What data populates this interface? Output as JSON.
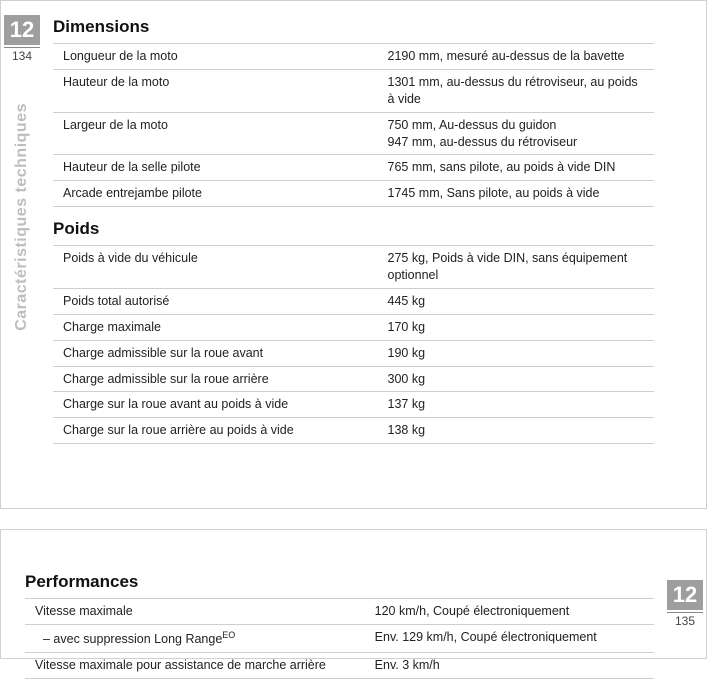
{
  "chapter": "12",
  "page_top": "134",
  "page_bottom": "135",
  "vertical_label": "Caractéristiques techniques",
  "sections": {
    "dimensions": {
      "title": "Dimensions",
      "rows": [
        {
          "label": "Longueur de la moto",
          "value": "2190 mm, mesuré au-dessus de la bavette"
        },
        {
          "label": "Hauteur de la moto",
          "value": "1301 mm, au-dessus du rétroviseur, au poids à vide"
        },
        {
          "label": "Largeur de la moto",
          "value": "750 mm, Au-dessus du guidon\n947 mm, au-dessus du rétroviseur"
        },
        {
          "label": "Hauteur de la selle pilote",
          "value": "765 mm, sans pilote, au poids à vide DIN"
        },
        {
          "label": "Arcade entrejambe pilote",
          "value": "1745 mm, Sans pilote, au poids à vide"
        }
      ]
    },
    "poids": {
      "title": "Poids",
      "rows": [
        {
          "label": "Poids à vide du véhicule",
          "value": "275 kg, Poids à vide DIN, sans équipement optionnel"
        },
        {
          "label": "Poids total autorisé",
          "value": "445 kg"
        },
        {
          "label": "Charge maximale",
          "value": "170 kg"
        },
        {
          "label": "Charge admissible sur la roue avant",
          "value": "190 kg"
        },
        {
          "label": "Charge admissible sur la roue arrière",
          "value": "300 kg"
        },
        {
          "label": "Charge sur la roue avant au poids à vide",
          "value": "137 kg"
        },
        {
          "label": "Charge sur la roue arrière au poids à vide",
          "value": "138 kg"
        }
      ]
    },
    "performances": {
      "title": "Performances",
      "rows": [
        {
          "label": "Vitesse maximale",
          "value": "120 km/h, Coupé électroniquement"
        },
        {
          "label": "– avec suppression Long Range",
          "sup": "EO",
          "value": "Env. 129 km/h, Coupé électroniquement"
        },
        {
          "label": "Vitesse maximale pour assistance de marche arrière",
          "value": "Env. 3 km/h"
        }
      ]
    }
  }
}
